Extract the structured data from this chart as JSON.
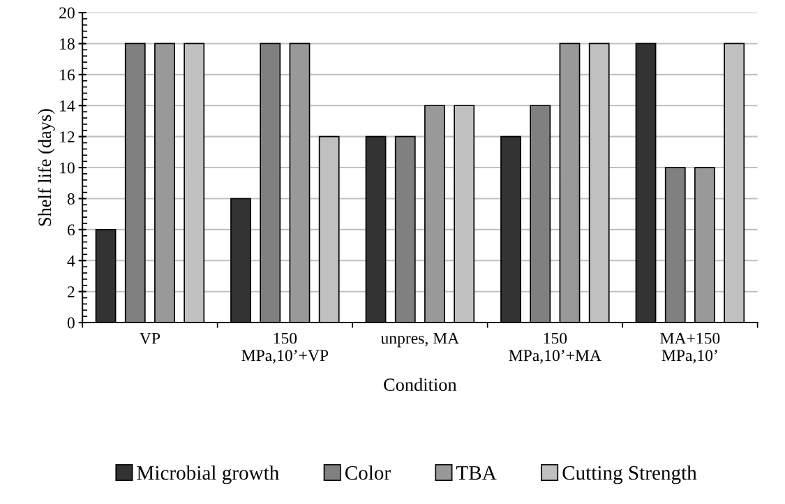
{
  "chart_data": {
    "type": "bar",
    "xlabel": "Condition",
    "ylabel": "Shelf life (days)",
    "categories": [
      "VP",
      "150\nMPa,10’+VP",
      "unpres, MA",
      "150\nMPa,10’+MA",
      "MA+150\nMPa,10’"
    ],
    "series": [
      {
        "name": "Microbial growth",
        "color": "#333333",
        "values": [
          6,
          8,
          12,
          12,
          18
        ]
      },
      {
        "name": "Color",
        "color": "#808080",
        "values": [
          18,
          18,
          12,
          14,
          10
        ]
      },
      {
        "name": "TBA",
        "color": "#999999",
        "values": [
          18,
          18,
          14,
          18,
          10
        ]
      },
      {
        "name": "Cutting Strength",
        "color": "#c0c0c0",
        "values": [
          18,
          12,
          14,
          18,
          18
        ]
      }
    ],
    "ylim": [
      0,
      20
    ],
    "yticks": [
      0,
      2,
      4,
      6,
      8,
      10,
      12,
      14,
      16,
      18,
      20
    ],
    "grid": "y",
    "legend": "bottom"
  }
}
